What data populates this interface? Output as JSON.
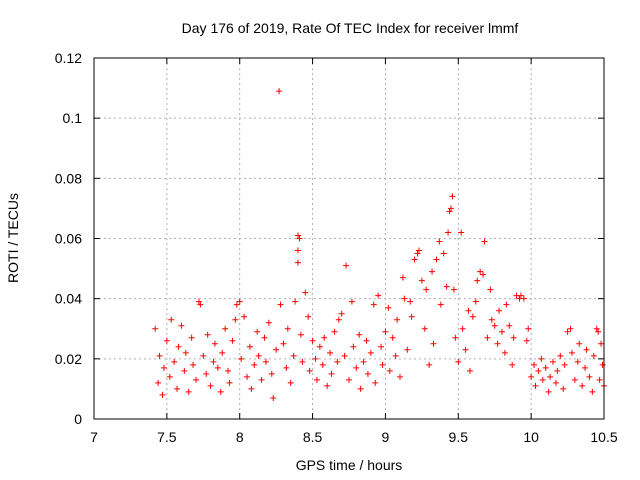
{
  "chart_data": {
    "type": "scatter",
    "title": "Day 176 of 2019, Rate Of TEC Index for receiver lmmf",
    "xlabel": "GPS time / hours",
    "ylabel": "ROTI / TECUs",
    "xlim": [
      7,
      10.5
    ],
    "ylim": [
      0,
      0.12
    ],
    "xticks": [
      7,
      7.5,
      8,
      8.5,
      9,
      9.5,
      10,
      10.5
    ],
    "xtick_labels": [
      "7",
      "7.5",
      "8",
      "8.5",
      "9",
      "9.5",
      "10",
      "10.5"
    ],
    "yticks": [
      0,
      0.02,
      0.04,
      0.06,
      0.08,
      0.1,
      0.12
    ],
    "ytick_labels": [
      "0",
      "0.02",
      "0.04",
      "0.06",
      "0.08",
      "0.1",
      "0.12"
    ],
    "grid": true,
    "marker": "+",
    "color": "#ff0000",
    "series": [
      {
        "name": "ROTI",
        "points": [
          [
            7.42,
            0.03
          ],
          [
            7.44,
            0.012
          ],
          [
            7.45,
            0.021
          ],
          [
            7.47,
            0.008
          ],
          [
            7.48,
            0.017
          ],
          [
            7.5,
            0.026
          ],
          [
            7.52,
            0.014
          ],
          [
            7.53,
            0.033
          ],
          [
            7.55,
            0.019
          ],
          [
            7.57,
            0.01
          ],
          [
            7.58,
            0.024
          ],
          [
            7.6,
            0.031
          ],
          [
            7.62,
            0.016
          ],
          [
            7.63,
            0.022
          ],
          [
            7.65,
            0.009
          ],
          [
            7.67,
            0.027
          ],
          [
            7.68,
            0.018
          ],
          [
            7.7,
            0.013
          ],
          [
            7.72,
            0.039
          ],
          [
            7.73,
            0.038
          ],
          [
            7.75,
            0.021
          ],
          [
            7.77,
            0.015
          ],
          [
            7.78,
            0.028
          ],
          [
            7.8,
            0.011
          ],
          [
            7.82,
            0.019
          ],
          [
            7.83,
            0.025
          ],
          [
            7.85,
            0.017
          ],
          [
            7.87,
            0.009
          ],
          [
            7.88,
            0.022
          ],
          [
            7.9,
            0.03
          ],
          [
            7.92,
            0.016
          ],
          [
            7.93,
            0.012
          ],
          [
            7.95,
            0.026
          ],
          [
            7.97,
            0.033
          ],
          [
            7.98,
            0.038
          ],
          [
            8.0,
            0.039
          ],
          [
            8.01,
            0.02
          ],
          [
            8.03,
            0.034
          ],
          [
            8.05,
            0.014
          ],
          [
            8.07,
            0.024
          ],
          [
            8.08,
            0.01
          ],
          [
            8.1,
            0.018
          ],
          [
            8.12,
            0.029
          ],
          [
            8.13,
            0.021
          ],
          [
            8.15,
            0.013
          ],
          [
            8.17,
            0.027
          ],
          [
            8.18,
            0.019
          ],
          [
            8.2,
            0.032
          ],
          [
            8.22,
            0.015
          ],
          [
            8.23,
            0.007
          ],
          [
            8.25,
            0.023
          ],
          [
            8.27,
            0.109
          ],
          [
            8.28,
            0.038
          ],
          [
            8.3,
            0.025
          ],
          [
            8.32,
            0.017
          ],
          [
            8.33,
            0.03
          ],
          [
            8.35,
            0.012
          ],
          [
            8.37,
            0.021
          ],
          [
            8.38,
            0.039
          ],
          [
            8.4,
            0.061
          ],
          [
            8.4,
            0.056
          ],
          [
            8.4,
            0.052
          ],
          [
            8.41,
            0.06
          ],
          [
            8.42,
            0.028
          ],
          [
            8.43,
            0.019
          ],
          [
            8.45,
            0.042
          ],
          [
            8.47,
            0.034
          ],
          [
            8.48,
            0.016
          ],
          [
            8.5,
            0.026
          ],
          [
            8.52,
            0.02
          ],
          [
            8.53,
            0.013
          ],
          [
            8.55,
            0.024
          ],
          [
            8.57,
            0.018
          ],
          [
            8.58,
            0.027
          ],
          [
            8.6,
            0.011
          ],
          [
            8.62,
            0.022
          ],
          [
            8.63,
            0.015
          ],
          [
            8.65,
            0.029
          ],
          [
            8.67,
            0.019
          ],
          [
            8.68,
            0.033
          ],
          [
            8.7,
            0.035
          ],
          [
            8.72,
            0.021
          ],
          [
            8.73,
            0.051
          ],
          [
            8.75,
            0.013
          ],
          [
            8.77,
            0.039
          ],
          [
            8.78,
            0.024
          ],
          [
            8.8,
            0.017
          ],
          [
            8.82,
            0.028
          ],
          [
            8.83,
            0.01
          ],
          [
            8.85,
            0.019
          ],
          [
            8.87,
            0.026
          ],
          [
            8.88,
            0.015
          ],
          [
            8.9,
            0.022
          ],
          [
            8.92,
            0.038
          ],
          [
            8.93,
            0.012
          ],
          [
            8.95,
            0.041
          ],
          [
            8.97,
            0.024
          ],
          [
            8.98,
            0.018
          ],
          [
            9.0,
            0.029
          ],
          [
            9.02,
            0.037
          ],
          [
            9.03,
            0.016
          ],
          [
            9.05,
            0.027
          ],
          [
            9.07,
            0.021
          ],
          [
            9.08,
            0.033
          ],
          [
            9.1,
            0.014
          ],
          [
            9.12,
            0.047
          ],
          [
            9.13,
            0.04
          ],
          [
            9.15,
            0.023
          ],
          [
            9.17,
            0.039
          ],
          [
            9.18,
            0.034
          ],
          [
            9.2,
            0.053
          ],
          [
            9.22,
            0.055
          ],
          [
            9.23,
            0.056
          ],
          [
            9.25,
            0.046
          ],
          [
            9.27,
            0.03
          ],
          [
            9.28,
            0.043
          ],
          [
            9.3,
            0.018
          ],
          [
            9.32,
            0.049
          ],
          [
            9.33,
            0.025
          ],
          [
            9.35,
            0.053
          ],
          [
            9.37,
            0.059
          ],
          [
            9.38,
            0.038
          ],
          [
            9.4,
            0.055
          ],
          [
            9.42,
            0.044
          ],
          [
            9.43,
            0.062
          ],
          [
            9.44,
            0.069
          ],
          [
            9.45,
            0.07
          ],
          [
            9.46,
            0.074
          ],
          [
            9.47,
            0.043
          ],
          [
            9.48,
            0.027
          ],
          [
            9.5,
            0.019
          ],
          [
            9.52,
            0.062
          ],
          [
            9.53,
            0.03
          ],
          [
            9.55,
            0.023
          ],
          [
            9.57,
            0.036
          ],
          [
            9.58,
            0.016
          ],
          [
            9.6,
            0.034
          ],
          [
            9.62,
            0.039
          ],
          [
            9.63,
            0.046
          ],
          [
            9.65,
            0.049
          ],
          [
            9.67,
            0.048
          ],
          [
            9.68,
            0.059
          ],
          [
            9.7,
            0.027
          ],
          [
            9.72,
            0.043
          ],
          [
            9.73,
            0.033
          ],
          [
            9.75,
            0.031
          ],
          [
            9.77,
            0.025
          ],
          [
            9.78,
            0.036
          ],
          [
            9.8,
            0.029
          ],
          [
            9.82,
            0.022
          ],
          [
            9.83,
            0.038
          ],
          [
            9.85,
            0.031
          ],
          [
            9.87,
            0.018
          ],
          [
            9.88,
            0.027
          ],
          [
            9.9,
            0.041
          ],
          [
            9.92,
            0.04
          ],
          [
            9.93,
            0.041
          ],
          [
            9.95,
            0.04
          ],
          [
            9.97,
            0.026
          ],
          [
            9.98,
            0.03
          ],
          [
            10.0,
            0.014
          ],
          [
            10.02,
            0.018
          ],
          [
            10.03,
            0.011
          ],
          [
            10.05,
            0.016
          ],
          [
            10.07,
            0.02
          ],
          [
            10.08,
            0.013
          ],
          [
            10.1,
            0.017
          ],
          [
            10.12,
            0.009
          ],
          [
            10.13,
            0.014
          ],
          [
            10.15,
            0.019
          ],
          [
            10.17,
            0.012
          ],
          [
            10.18,
            0.016
          ],
          [
            10.2,
            0.021
          ],
          [
            10.22,
            0.01
          ],
          [
            10.23,
            0.018
          ],
          [
            10.25,
            0.029
          ],
          [
            10.27,
            0.03
          ],
          [
            10.28,
            0.022
          ],
          [
            10.3,
            0.013
          ],
          [
            10.32,
            0.019
          ],
          [
            10.33,
            0.025
          ],
          [
            10.35,
            0.011
          ],
          [
            10.37,
            0.017
          ],
          [
            10.38,
            0.023
          ],
          [
            10.4,
            0.014
          ],
          [
            10.42,
            0.009
          ],
          [
            10.43,
            0.021
          ],
          [
            10.45,
            0.03
          ],
          [
            10.46,
            0.029
          ],
          [
            10.47,
            0.013
          ],
          [
            10.48,
            0.025
          ],
          [
            10.49,
            0.018
          ],
          [
            10.5,
            0.011
          ]
        ]
      }
    ]
  }
}
